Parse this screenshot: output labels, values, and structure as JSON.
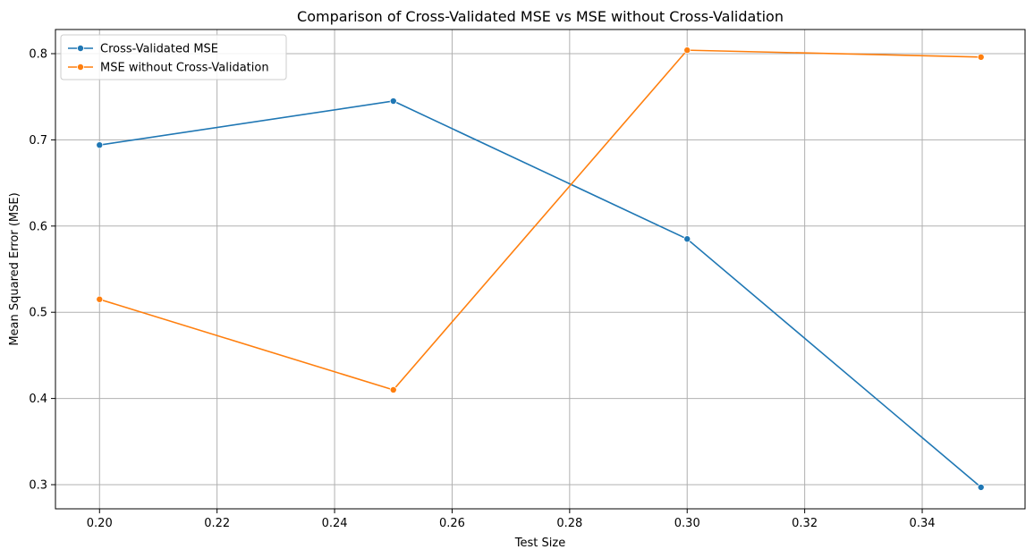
{
  "chart_data": {
    "type": "line",
    "title": "Comparison of Cross-Validated MSE vs MSE without Cross-Validation",
    "xlabel": "Test Size",
    "ylabel": "Mean Squared Error (MSE)",
    "x": [
      0.2,
      0.25,
      0.3,
      0.35
    ],
    "xlim": [
      0.1925,
      0.3575
    ],
    "ylim": [
      0.272,
      0.828
    ],
    "xticks": [
      "0.20",
      "0.22",
      "0.24",
      "0.26",
      "0.28",
      "0.30",
      "0.32",
      "0.34"
    ],
    "yticks": [
      "0.3",
      "0.4",
      "0.5",
      "0.6",
      "0.7",
      "0.8"
    ],
    "grid": true,
    "legend_position": "upper-left",
    "series": [
      {
        "name": "Cross-Validated MSE",
        "color": "#1f77b4",
        "marker": "circle",
        "values": [
          0.694,
          0.745,
          0.585,
          0.297
        ]
      },
      {
        "name": "MSE without Cross-Validation",
        "color": "#ff7f0e",
        "marker": "circle",
        "values": [
          0.515,
          0.41,
          0.804,
          0.796
        ]
      }
    ]
  }
}
